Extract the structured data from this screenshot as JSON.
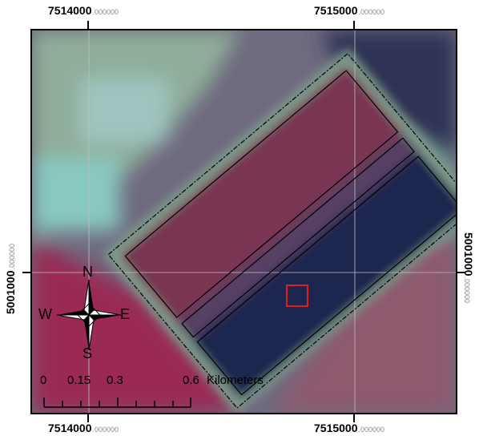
{
  "grid": {
    "x_labels": [
      {
        "main": "7514000",
        "decimal": ".000000"
      },
      {
        "main": "7515000",
        "decimal": ".000000"
      }
    ],
    "y_labels": [
      {
        "main": "5001000",
        "decimal": ".000000"
      },
      {
        "main": "5001000",
        "decimal": ".000000"
      }
    ]
  },
  "compass": {
    "n": "N",
    "s": "S",
    "e": "E",
    "w": "W"
  },
  "scale_bar": {
    "labels": [
      "0",
      "0.15",
      "0.3",
      "0.6"
    ],
    "unit": "Kilometers"
  },
  "colors": {
    "frame": "#000000",
    "polygon_outline": "#000000",
    "highlight_box": "#e02020",
    "graticule": "#bfbfbf"
  }
}
